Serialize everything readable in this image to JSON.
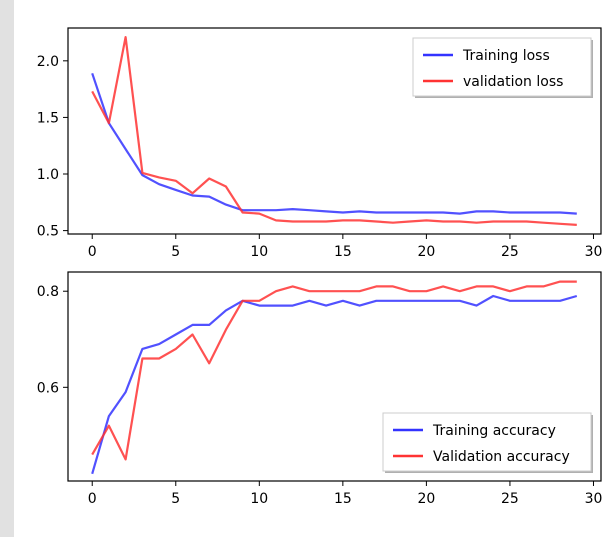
{
  "chart_data": [
    {
      "type": "line",
      "xlim": [
        -1.45,
        30.45
      ],
      "ylim": [
        0.47,
        2.29
      ],
      "xticks": [
        "0",
        "5",
        "10",
        "15",
        "20",
        "25",
        "30"
      ],
      "xtick_values": [
        0,
        5,
        10,
        15,
        20,
        25,
        30
      ],
      "yticks": [
        "0.5",
        "1.0",
        "1.5",
        "2.0"
      ],
      "ytick_values": [
        0.5,
        1.0,
        1.5,
        2.0
      ],
      "legend_position": "top-right",
      "grid": false,
      "x": [
        0,
        1,
        2,
        3,
        4,
        5,
        6,
        7,
        8,
        9,
        10,
        11,
        12,
        13,
        14,
        15,
        16,
        17,
        18,
        19,
        20,
        21,
        22,
        23,
        24,
        25,
        26,
        27,
        28,
        29
      ],
      "series": [
        {
          "name": "Training loss",
          "color": "#3333ff",
          "values": [
            1.89,
            1.45,
            1.22,
            0.99,
            0.91,
            0.86,
            0.81,
            0.8,
            0.73,
            0.68,
            0.68,
            0.68,
            0.69,
            0.68,
            0.67,
            0.66,
            0.67,
            0.66,
            0.66,
            0.66,
            0.66,
            0.66,
            0.65,
            0.67,
            0.67,
            0.66,
            0.66,
            0.66,
            0.66,
            0.65
          ]
        },
        {
          "name": "validation loss",
          "color": "#ff3333",
          "values": [
            1.73,
            1.45,
            2.21,
            1.01,
            0.97,
            0.94,
            0.83,
            0.96,
            0.89,
            0.66,
            0.65,
            0.59,
            0.58,
            0.58,
            0.58,
            0.59,
            0.59,
            0.58,
            0.57,
            0.58,
            0.59,
            0.58,
            0.58,
            0.57,
            0.58,
            0.58,
            0.58,
            0.57,
            0.56,
            0.55
          ]
        }
      ]
    },
    {
      "type": "line",
      "xlim": [
        -1.45,
        30.45
      ],
      "ylim": [
        0.405,
        0.84
      ],
      "xticks": [
        "0",
        "5",
        "10",
        "15",
        "20",
        "25",
        "30"
      ],
      "xtick_values": [
        0,
        5,
        10,
        15,
        20,
        25,
        30
      ],
      "yticks": [
        "0.6",
        "0.8"
      ],
      "ytick_values": [
        0.6,
        0.8
      ],
      "legend_position": "bottom-right",
      "grid": false,
      "x": [
        0,
        1,
        2,
        3,
        4,
        5,
        6,
        7,
        8,
        9,
        10,
        11,
        12,
        13,
        14,
        15,
        16,
        17,
        18,
        19,
        20,
        21,
        22,
        23,
        24,
        25,
        26,
        27,
        28,
        29
      ],
      "series": [
        {
          "name": "Training accuracy",
          "color": "#3333ff",
          "values": [
            0.42,
            0.54,
            0.59,
            0.68,
            0.69,
            0.71,
            0.73,
            0.73,
            0.76,
            0.78,
            0.77,
            0.77,
            0.77,
            0.78,
            0.77,
            0.78,
            0.77,
            0.78,
            0.78,
            0.78,
            0.78,
            0.78,
            0.78,
            0.77,
            0.79,
            0.78,
            0.78,
            0.78,
            0.78,
            0.79
          ]
        },
        {
          "name": "Validation accuracy",
          "color": "#ff3333",
          "values": [
            0.46,
            0.52,
            0.45,
            0.66,
            0.66,
            0.68,
            0.71,
            0.65,
            0.72,
            0.78,
            0.78,
            0.8,
            0.81,
            0.8,
            0.8,
            0.8,
            0.8,
            0.81,
            0.81,
            0.8,
            0.8,
            0.81,
            0.8,
            0.81,
            0.81,
            0.8,
            0.81,
            0.81,
            0.82,
            0.82
          ]
        }
      ]
    }
  ]
}
